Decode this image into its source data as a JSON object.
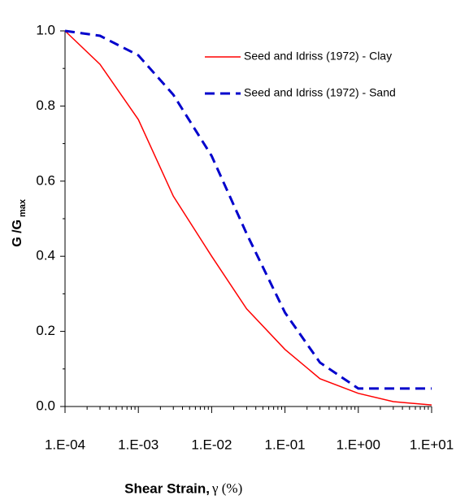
{
  "chart_data": {
    "type": "line",
    "x_label": "Shear Strain,",
    "x_label_symbol": "γ (%)",
    "y_label": "G /G",
    "y_label_sub": "max",
    "x": [
      0.0001,
      0.0003,
      0.001,
      0.003,
      0.01,
      0.03,
      0.1,
      0.3,
      1,
      3,
      10
    ],
    "x_log": true,
    "series": [
      {
        "name": "Seed and Idriss (1972) - Clay",
        "color": "#ff0000",
        "dash": false,
        "values": [
          1.0,
          0.911,
          0.764,
          0.56,
          0.4,
          0.26,
          0.152,
          0.074,
          0.035,
          0.013,
          0.004
        ]
      },
      {
        "name": "Seed and Idriss (1972) - Sand",
        "color": "#0000cc",
        "dash": true,
        "values": [
          1.0,
          0.987,
          0.935,
          0.83,
          0.667,
          0.46,
          0.25,
          0.117,
          0.048,
          0.048,
          0.048
        ]
      }
    ],
    "xlim": [
      0.0001,
      10
    ],
    "xticks": [
      {
        "value": 0.0001,
        "label": "1.E-04"
      },
      {
        "value": 0.001,
        "label": "1.E-03"
      },
      {
        "value": 0.01,
        "label": "1.E-02"
      },
      {
        "value": 0.1,
        "label": "1.E-01"
      },
      {
        "value": 1,
        "label": "1.E+00"
      },
      {
        "value": 10,
        "label": "1.E+01"
      }
    ],
    "ylim": [
      0,
      1
    ],
    "yticks": [
      {
        "value": 0,
        "label": "0.0"
      },
      0.2,
      0.4,
      0.6,
      0.8,
      {
        "value": 1,
        "label": "1.0"
      }
    ],
    "legend": "top-right"
  }
}
